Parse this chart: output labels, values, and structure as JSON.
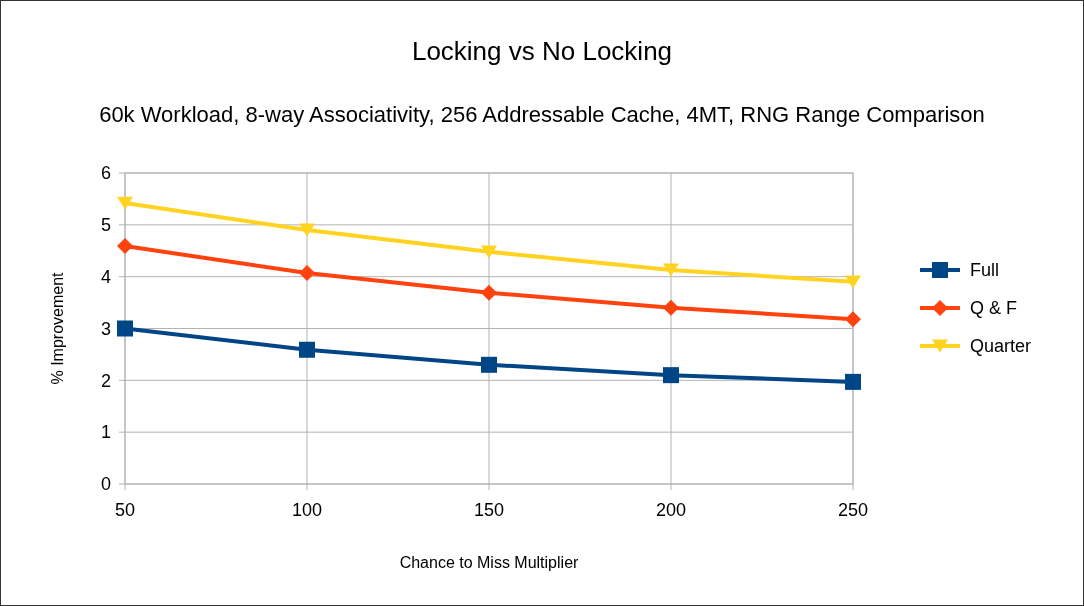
{
  "chart_data": {
    "type": "line",
    "title": "Locking vs No Locking",
    "subtitle": "60k Workload, 8-way Associativity, 256 Addressable Cache, 4MT, RNG Range Comparison",
    "xlabel": "Chance to Miss Multiplier",
    "ylabel": "% Improvement",
    "x": [
      50,
      100,
      150,
      200,
      250
    ],
    "xlim": [
      50,
      250
    ],
    "xticks": [
      50,
      100,
      150,
      200,
      250
    ],
    "ylim": [
      0,
      6
    ],
    "yticks": [
      0,
      1,
      2,
      3,
      4,
      5,
      6
    ],
    "grid": true,
    "legend": "right",
    "series": [
      {
        "name": "Full",
        "color": "#004586",
        "marker": "square",
        "values": [
          3.0,
          2.59,
          2.3,
          2.1,
          1.97
        ]
      },
      {
        "name": "Q & F",
        "color": "#ff420e",
        "marker": "diamond",
        "values": [
          4.59,
          4.07,
          3.69,
          3.4,
          3.18
        ]
      },
      {
        "name": "Quarter",
        "color": "#ffd320",
        "marker": "triangle",
        "values": [
          5.42,
          4.9,
          4.48,
          4.13,
          3.9
        ]
      }
    ]
  }
}
